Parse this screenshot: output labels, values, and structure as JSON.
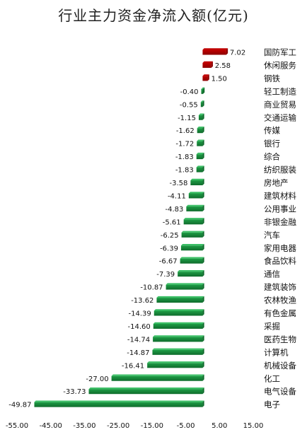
{
  "chart_data": {
    "type": "bar",
    "orientation": "horizontal",
    "title": "行业主力资金净流入额(亿元)",
    "xlabel": "",
    "ylabel": "",
    "xlim": [
      -55,
      15
    ],
    "x_ticks": [
      "-55.00",
      "-45.00",
      "-35.00",
      "-25.00",
      "-15.00",
      "-5.00",
      "5.00",
      "15.00"
    ],
    "grid": false,
    "categories": [
      "国防军工",
      "休闲服务",
      "钢铁",
      "轻工制造",
      "商业贸易",
      "交通运输",
      "传媒",
      "银行",
      "综合",
      "纺织服装",
      "房地产",
      "建筑材料",
      "公用事业",
      "非银金融",
      "汽车",
      "家用电器",
      "食品饮料",
      "通信",
      "建筑装饰",
      "农林牧渔",
      "有色金属",
      "采掘",
      "医药生物",
      "计算机",
      "机械设备",
      "化工",
      "电气设备",
      "电子"
    ],
    "values": [
      7.02,
      2.58,
      1.5,
      -0.4,
      -0.55,
      -1.15,
      -1.62,
      -1.72,
      -1.83,
      -1.83,
      -3.58,
      -4.11,
      -4.83,
      -5.61,
      -6.25,
      -6.39,
      -6.67,
      -7.39,
      -10.87,
      -13.62,
      -14.39,
      -14.6,
      -14.74,
      -14.87,
      -16.41,
      -27.0,
      -33.73,
      -49.87
    ],
    "data_labels": [
      "7.02",
      "2.58",
      "1.50",
      "-0.40",
      "-0.55",
      "-1.15",
      "-1.62",
      "-1.72",
      "-1.83",
      "-1.83",
      "-3.58",
      "-4.11",
      "-4.83",
      "-5.61",
      "-6.25",
      "-6.39",
      "-6.67",
      "-7.39",
      "-10.87",
      "-13.62",
      "-14.39",
      "-14.60",
      "-14.74",
      "-14.87",
      "-16.41",
      "-27.00",
      "-33.73",
      "-49.87"
    ],
    "colors": {
      "positive": "#c00000",
      "positive_dark": "#8b0000",
      "negative": "#1e9e46",
      "negative_dark": "#0f6b2c"
    }
  }
}
